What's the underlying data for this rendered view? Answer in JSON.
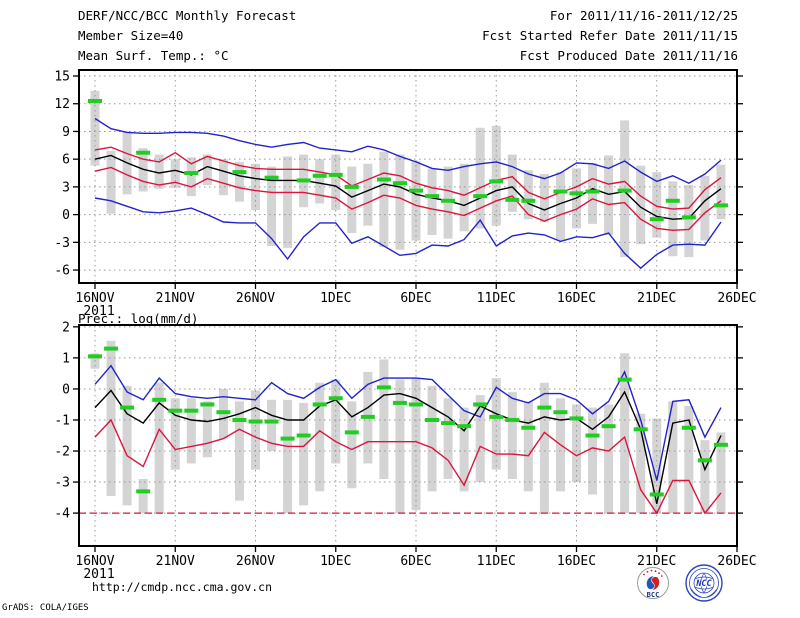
{
  "header": {
    "title_left": "DERF/NCC/BCC Monthly Forecast",
    "member_size": "Member Size=40",
    "var1_label": "Mean Surf. Temp.: °C",
    "title_right": "For 2011/11/16-2011/12/25",
    "refer_date": "Fcst Started Refer Date 2011/11/15",
    "produced_date": "Fcst Produced Date 2011/11/16"
  },
  "panel2_label": "Prec.: log(mm/d)",
  "footer": {
    "url": "http://cmdp.ncc.cma.gov.cn",
    "credit": "GrADS: COLA/IGES",
    "logo_bcc": "BCC",
    "logo_ncc": "NCC"
  },
  "colors": {
    "bar": "#d4d4d4",
    "grid": "#999999",
    "blue": "#2222cc",
    "red": "#dc143c",
    "green": "#22cc22",
    "black": "#000000"
  },
  "chart_data": [
    {
      "type": "line",
      "subtype": "ensemble-forecast-with-spread-bars",
      "title": "Mean Surf. Temp.: °C",
      "x_tick_labels": [
        "16NOV",
        "21NOV",
        "26NOV",
        "1DEC",
        "6DEC",
        "11DEC",
        "16DEC",
        "21DEC",
        "26DEC"
      ],
      "x_tick_days": [
        0,
        5,
        10,
        15,
        20,
        25,
        30,
        35,
        40
      ],
      "x_sub_label": "2011",
      "ylim": [
        -7.4,
        15.65
      ],
      "yticks": [
        -6,
        -3,
        0,
        3,
        6,
        9,
        12,
        15
      ],
      "grid": true,
      "n_days": 40,
      "bars": {
        "name": "member-spread",
        "top": [
          13.4,
          6.9,
          9.0,
          7.2,
          6.5,
          6.0,
          6.2,
          6.5,
          6.0,
          5.7,
          5.5,
          5.2,
          6.3,
          6.5,
          6.0,
          6.5,
          5.2,
          5.5,
          6.8,
          6.5,
          5.8,
          5.0,
          5.2,
          5.5,
          9.4,
          9.6,
          6.5,
          4.8,
          4.4,
          4.6,
          5.0,
          5.6,
          6.4,
          10.2,
          5.3,
          4.6,
          3.6,
          3.2,
          4.2,
          5.4
        ],
        "bottom": [
          5.3,
          0.1,
          2.2,
          2.5,
          2.8,
          2.9,
          2.0,
          3.2,
          2.1,
          1.4,
          0.5,
          -3.4,
          -3.6,
          0.8,
          1.2,
          0.5,
          -2.0,
          -1.2,
          -3.5,
          -3.8,
          -2.8,
          -2.2,
          -2.6,
          -1.8,
          -1.5,
          -1.2,
          0.3,
          -0.5,
          -0.8,
          -2.8,
          -1.5,
          -1.0,
          -2.2,
          -4.6,
          -3.2,
          -2.5,
          -4.5,
          -4.6,
          -2.8,
          -0.5
        ]
      },
      "series": [
        {
          "name": "ensemble-max",
          "color": "blue",
          "values": [
            10.4,
            9.3,
            8.9,
            8.8,
            8.8,
            8.9,
            8.9,
            8.8,
            8.5,
            8.0,
            7.6,
            7.3,
            7.6,
            7.8,
            7.2,
            7.0,
            6.8,
            7.4,
            7.0,
            6.3,
            5.7,
            5.0,
            4.8,
            5.2,
            5.5,
            5.7,
            5.2,
            4.4,
            3.9,
            4.5,
            5.6,
            5.5,
            5.0,
            5.8,
            4.6,
            3.6,
            4.2,
            3.4,
            4.4,
            5.9
          ]
        },
        {
          "name": "mean-plus-std",
          "color": "red",
          "values": [
            7.0,
            7.3,
            6.6,
            6.0,
            5.7,
            6.7,
            5.5,
            6.3,
            5.8,
            5.3,
            5.0,
            4.9,
            4.9,
            4.9,
            4.6,
            4.3,
            3.1,
            3.8,
            4.5,
            4.2,
            3.4,
            2.9,
            2.6,
            2.1,
            2.9,
            3.7,
            4.1,
            2.4,
            1.7,
            2.4,
            3.0,
            3.9,
            3.3,
            3.6,
            2.0,
            0.9,
            0.6,
            0.7,
            2.7,
            4.0
          ]
        },
        {
          "name": "ensemble-mean",
          "color": "black",
          "values": [
            6.0,
            6.4,
            5.6,
            4.9,
            4.5,
            4.8,
            4.3,
            5.2,
            4.7,
            4.2,
            3.9,
            3.7,
            3.7,
            3.7,
            3.4,
            3.1,
            1.9,
            2.6,
            3.3,
            3.0,
            2.2,
            1.8,
            1.5,
            1.0,
            1.8,
            2.6,
            3.0,
            1.2,
            0.5,
            1.2,
            1.8,
            2.8,
            2.2,
            2.5,
            0.8,
            -0.2,
            -0.5,
            -0.4,
            1.5,
            2.8
          ]
        },
        {
          "name": "mean-minus-std",
          "color": "red",
          "values": [
            4.7,
            5.1,
            4.3,
            3.6,
            3.2,
            3.5,
            3.0,
            3.9,
            3.4,
            2.9,
            2.6,
            2.4,
            2.4,
            2.4,
            2.1,
            1.8,
            0.6,
            1.3,
            2.1,
            1.8,
            1.0,
            0.6,
            0.3,
            -0.1,
            0.7,
            1.5,
            2.0,
            0.0,
            -0.7,
            0.0,
            0.6,
            1.7,
            1.1,
            1.3,
            -0.5,
            -1.5,
            -1.7,
            -1.6,
            0.2,
            1.5
          ]
        },
        {
          "name": "ensemble-min",
          "color": "blue",
          "values": [
            1.8,
            1.5,
            0.9,
            0.3,
            0.2,
            0.4,
            0.7,
            0.0,
            -0.8,
            -0.9,
            -0.9,
            -2.6,
            -4.8,
            -2.4,
            -0.9,
            -0.9,
            -3.1,
            -2.4,
            -3.4,
            -4.4,
            -4.2,
            -3.3,
            -3.4,
            -2.7,
            -0.6,
            -3.4,
            -2.3,
            -2.0,
            -2.2,
            -2.9,
            -2.4,
            -2.5,
            -2.0,
            -4.2,
            -5.8,
            -4.3,
            -3.3,
            -3.2,
            -3.3,
            -0.8
          ]
        },
        {
          "name": "observation",
          "color": "green",
          "style": "marker",
          "values": [
            12.3,
            null,
            null,
            6.7,
            null,
            null,
            4.5,
            null,
            null,
            4.6,
            null,
            4.0,
            null,
            3.7,
            4.2,
            4.3,
            3.0,
            null,
            3.8,
            3.4,
            2.6,
            2.0,
            1.5,
            null,
            2.0,
            3.6,
            1.6,
            1.5,
            null,
            2.5,
            2.3,
            2.5,
            null,
            2.6,
            null,
            -0.5,
            1.5,
            -0.3,
            null,
            1.0
          ]
        }
      ]
    },
    {
      "type": "line",
      "subtype": "ensemble-forecast-with-spread-bars",
      "title": "Prec.: log(mm/d)",
      "x_tick_labels": [
        "16NOV",
        "21NOV",
        "26NOV",
        "1DEC",
        "6DEC",
        "11DEC",
        "16DEC",
        "21DEC",
        "26DEC"
      ],
      "x_tick_days": [
        0,
        5,
        10,
        15,
        20,
        25,
        30,
        35,
        40
      ],
      "x_sub_label": "2011",
      "ylim": [
        -5.06,
        2.06
      ],
      "yticks": [
        -4,
        -3,
        -2,
        -1,
        0,
        1,
        2
      ],
      "grid": true,
      "n_days": 40,
      "baseline": {
        "name": "lower-bound",
        "value": -4.0,
        "style": "dashed",
        "color": "red"
      },
      "bars": {
        "name": "member-spread",
        "top": [
          1.15,
          1.55,
          0.1,
          -2.9,
          0.2,
          -0.3,
          -0.3,
          -0.4,
          0.0,
          -0.4,
          -0.05,
          -0.35,
          -0.35,
          -0.45,
          0.2,
          0.3,
          -0.4,
          0.55,
          0.95,
          0.3,
          0.35,
          0.1,
          -0.3,
          -0.6,
          -0.2,
          0.35,
          -0.1,
          -0.4,
          0.2,
          -0.3,
          -0.5,
          -0.6,
          -0.5,
          1.15,
          -0.8,
          -0.95,
          -0.4,
          -0.55,
          -1.65,
          -1.4
        ],
        "bottom": [
          0.65,
          -3.45,
          -3.75,
          -4.0,
          -4.0,
          -2.6,
          -2.4,
          -2.2,
          -1.6,
          -3.6,
          -2.6,
          -2.0,
          -4.0,
          -3.75,
          -3.3,
          -2.4,
          -3.2,
          -2.4,
          -2.9,
          -4.0,
          -3.9,
          -3.3,
          -2.9,
          -3.3,
          -3.0,
          -2.6,
          -2.9,
          -3.3,
          -4.0,
          -3.3,
          -3.0,
          -3.4,
          -4.0,
          -4.0,
          -4.0,
          -4.0,
          -4.0,
          -4.0,
          -4.0,
          -4.0
        ]
      },
      "series": [
        {
          "name": "ensemble-max",
          "color": "blue",
          "values": [
            0.15,
            0.75,
            -0.1,
            -0.35,
            0.35,
            -0.15,
            -0.25,
            -0.3,
            -0.25,
            -0.3,
            -0.35,
            0.2,
            -0.15,
            -0.3,
            0.05,
            0.3,
            -0.3,
            0.15,
            0.35,
            0.35,
            0.35,
            0.3,
            -0.2,
            -0.7,
            -0.9,
            0.05,
            -0.3,
            -0.45,
            -0.15,
            -0.15,
            -0.35,
            -0.8,
            -0.4,
            0.55,
            -1.0,
            -2.95,
            -0.4,
            -0.35,
            -1.55,
            -0.6
          ]
        },
        {
          "name": "ensemble-mean",
          "color": "black",
          "values": [
            -0.6,
            -0.05,
            -0.8,
            -1.1,
            -0.45,
            -0.85,
            -1.0,
            -1.05,
            -0.95,
            -0.8,
            -0.6,
            -0.85,
            -1.0,
            -1.0,
            -0.55,
            -0.35,
            -0.9,
            -0.6,
            -0.2,
            -0.15,
            -0.3,
            -0.6,
            -0.9,
            -1.35,
            -0.55,
            -0.8,
            -1.0,
            -1.1,
            -0.9,
            -1.0,
            -0.95,
            -1.3,
            -0.9,
            -0.1,
            -1.3,
            -3.7,
            -1.1,
            -1.0,
            -2.6,
            -1.5
          ]
        },
        {
          "name": "mean-minus-std",
          "color": "red",
          "values": [
            -1.55,
            -1.0,
            -2.15,
            -2.5,
            -1.3,
            -1.95,
            -1.85,
            -1.75,
            -1.6,
            -1.3,
            -1.55,
            -1.75,
            -1.85,
            -1.85,
            -1.35,
            -1.7,
            -1.95,
            -1.7,
            -1.7,
            -1.7,
            -1.7,
            -1.9,
            -2.3,
            -3.1,
            -1.85,
            -2.1,
            -2.1,
            -2.15,
            -1.4,
            -1.8,
            -2.15,
            -1.9,
            -2.0,
            -1.55,
            -3.25,
            -4.0,
            -2.95,
            -2.95,
            -4.0,
            -3.35
          ]
        },
        {
          "name": "observation",
          "color": "green",
          "style": "marker",
          "values": [
            1.05,
            1.3,
            -0.6,
            -3.3,
            -0.35,
            -0.7,
            -0.7,
            -0.5,
            -0.75,
            -1.0,
            -1.05,
            -1.05,
            -1.6,
            -1.5,
            -0.5,
            -0.3,
            -1.4,
            -0.9,
            0.05,
            -0.45,
            -0.5,
            -1.0,
            -1.1,
            -1.2,
            -0.5,
            -0.9,
            -1.0,
            -1.25,
            -0.6,
            -0.75,
            -0.95,
            -1.5,
            -1.2,
            0.3,
            -1.3,
            -3.4,
            null,
            -1.25,
            -2.3,
            -1.8
          ]
        }
      ]
    }
  ]
}
